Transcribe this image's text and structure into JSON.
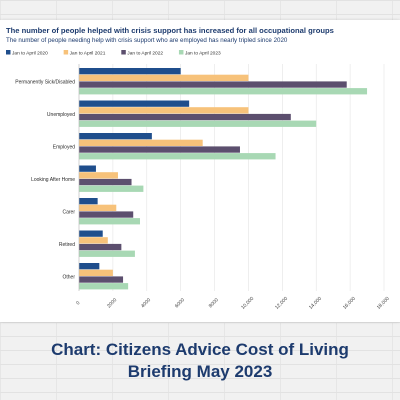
{
  "chart_data": {
    "type": "bar",
    "orientation": "horizontal",
    "title": "The number of people helped with crisis support has increased for all occupational groups",
    "subtitle": "The number of people needing help with crisis support who are employed has nearly tripled since 2020",
    "categories": [
      "Permanently Sick/Disabled",
      "Unemployed",
      "Employed",
      "Looking After Home",
      "Carer",
      "Retired",
      "Other"
    ],
    "series": [
      {
        "name": "Jan to April 2020",
        "color": "#1f4e8c",
        "values": [
          6000,
          6500,
          4300,
          1000,
          1100,
          1400,
          1200
        ]
      },
      {
        "name": "Jan to April 2021",
        "color": "#f7c27a",
        "values": [
          10000,
          10000,
          7300,
          2300,
          2200,
          1700,
          2000
        ]
      },
      {
        "name": "Jan to April 2022",
        "color": "#5c4f6e",
        "values": [
          15800,
          12500,
          9500,
          3100,
          3200,
          2500,
          2600
        ]
      },
      {
        "name": "Jan to April 2023",
        "color": "#a8d8b4",
        "values": [
          17000,
          14000,
          11600,
          3800,
          3600,
          3300,
          2900
        ]
      }
    ],
    "xlim": [
      0,
      18000
    ],
    "xticks": [
      "0",
      "2000",
      "4000",
      "6000",
      "8000",
      "10,000",
      "12,000",
      "14,000",
      "16,000",
      "18,000"
    ],
    "xlabel": "",
    "ylabel": "",
    "grid": true,
    "legend_position": "top-left"
  },
  "caption": {
    "line1": "Chart: Citizens Advice Cost of Living",
    "line2": "Briefing May 2023"
  }
}
